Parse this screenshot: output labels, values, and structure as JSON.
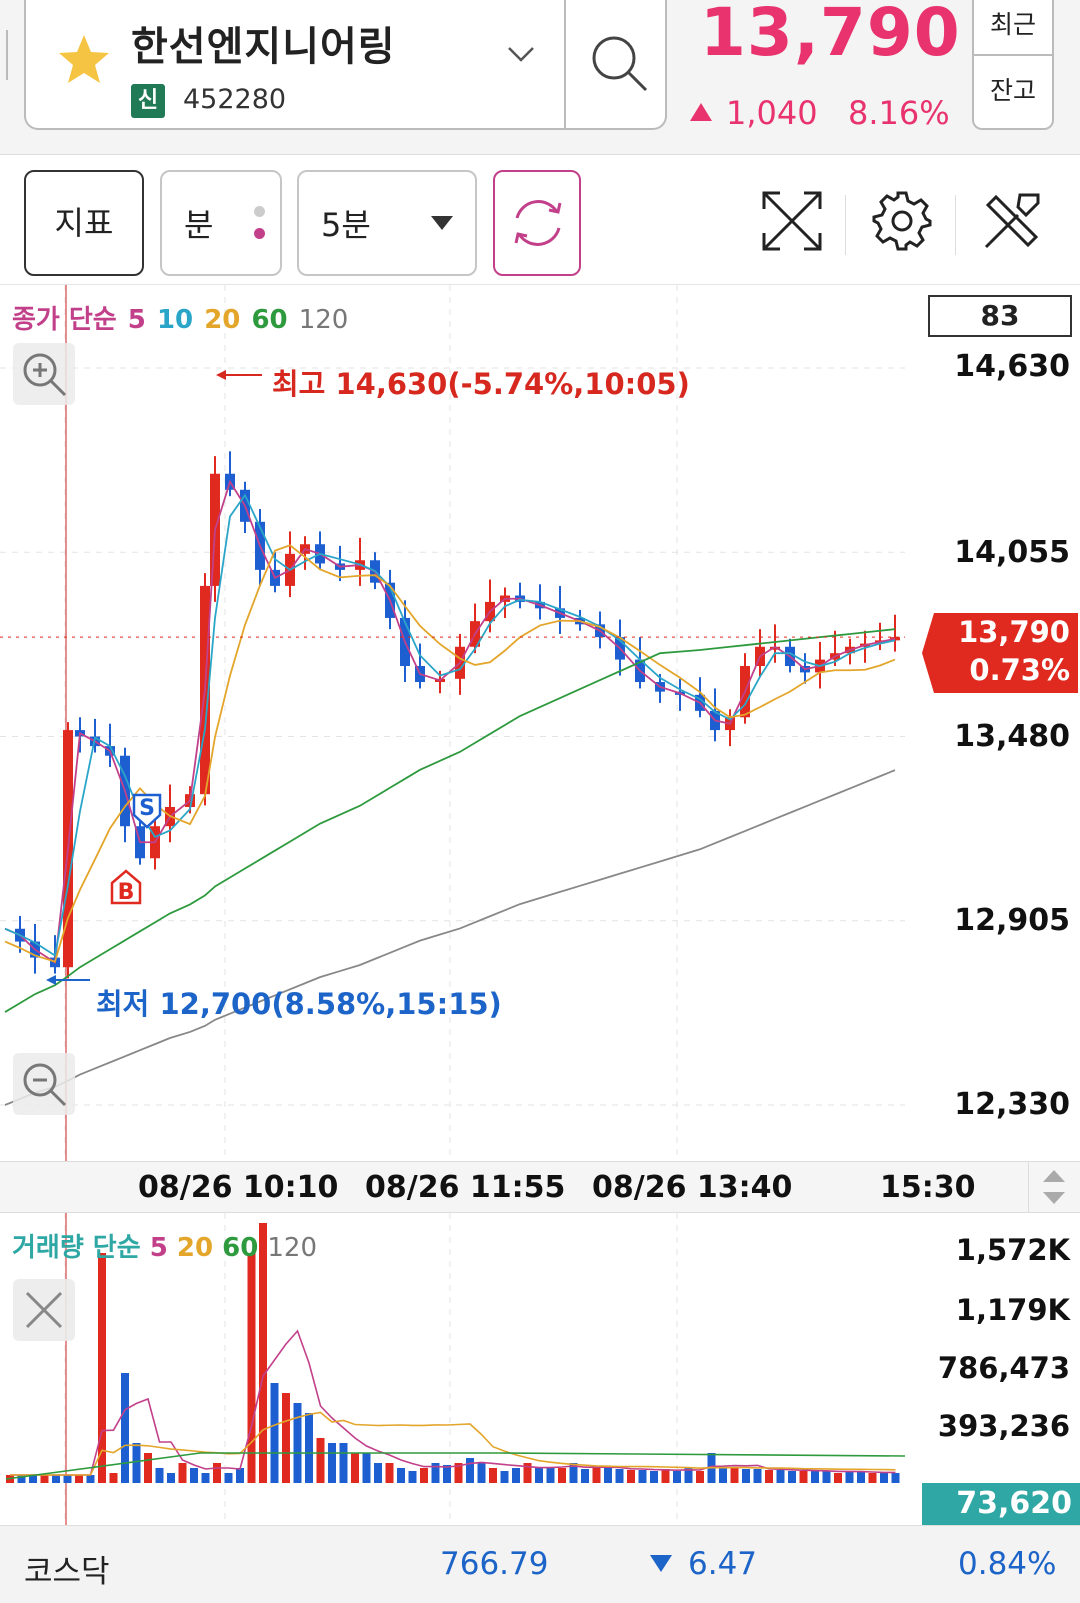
{
  "header": {
    "stock_name": "한선엔지니어링",
    "badge": "신",
    "stock_code": "452280",
    "price": "13,790",
    "change_abs": "1,040",
    "change_pct": "8.16%",
    "btn_recent": "최근",
    "btn_balance": "잔고",
    "colors": {
      "up": "#e8336e",
      "star": "#f6c443",
      "badge": "#1f7a55"
    }
  },
  "toolbar": {
    "indicator_label": "지표",
    "minute_label": "분",
    "interval_value": "5분"
  },
  "price_chart": {
    "legend": {
      "base": "종가 단순",
      "ma5": "5",
      "ma10": "10",
      "ma20": "20",
      "ma60": "60",
      "ma120": "120"
    },
    "legend_colors": {
      "base": "#c2408a",
      "ma5": "#c2408a",
      "ma10": "#2aa5c8",
      "ma20": "#e3a52a",
      "ma60": "#2e9a3e",
      "ma120": "#777777"
    },
    "top_box": "83",
    "y_labels": [
      "14,630",
      "14,055",
      "13,480",
      "12,905",
      "12,330"
    ],
    "current_price": "13,790",
    "current_pct": "0.73%",
    "high_annotation": "최고 14,630(-5.74%,10:05)",
    "low_annotation": "최저 12,700(8.58%,15:15)",
    "x_labels": [
      "08/26 10:10",
      "08/26 11:55",
      "08/26 13:40",
      "15:30"
    ]
  },
  "chart_data": {
    "type": "candlestick",
    "interval": "5분",
    "ylim": [
      12330,
      14630
    ],
    "y_ticks": [
      14630,
      14055,
      13480,
      12905,
      12330
    ],
    "high": 14630,
    "low": 12700,
    "last": 13790,
    "signals": [
      "B",
      "S"
    ]
  },
  "volume_chart": {
    "legend": {
      "base": "거래량 단순",
      "ma5": "5",
      "ma20": "20",
      "ma60": "60",
      "ma120": "120"
    },
    "y_labels": [
      "1,572K",
      "1,179K",
      "786,473",
      "393,236"
    ],
    "current_volume": "73,620"
  },
  "footer": {
    "index_name": "코스닥",
    "index_value": "766.79",
    "index_change": "6.47",
    "index_pct": "0.84%"
  }
}
